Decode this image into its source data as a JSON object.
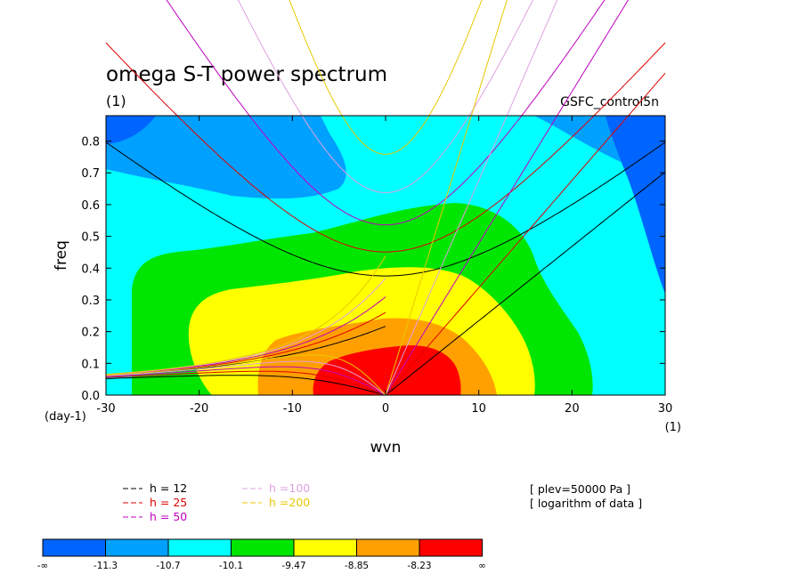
{
  "chart_data": {
    "type": "heatmap",
    "title": "omega S-T power spectrum",
    "subtitle": "(1)",
    "experiment": "GSFC_control5n",
    "xlabel": "wvn",
    "ylabel": "freq",
    "x_unit_label": "(1)",
    "y_unit_label": "(day-1)",
    "xlim": [
      -30,
      30
    ],
    "ylim": [
      0,
      0.88
    ],
    "x_ticks": [
      "-30",
      "-20",
      "-10",
      "0",
      "10",
      "20",
      "30"
    ],
    "y_ticks": [
      "0.0",
      "0.1",
      "0.2",
      "0.3",
      "0.4",
      "0.5",
      "0.6",
      "0.7",
      "0.8"
    ],
    "x_tick_values": [
      -30,
      -20,
      -10,
      0,
      10,
      20,
      30
    ],
    "y_tick_values": [
      0,
      0.1,
      0.2,
      0.3,
      0.4,
      0.5,
      0.6,
      0.7,
      0.8
    ],
    "info_lines": [
      "[ plev=50000 Pa ]",
      "[ logarithm of data ]"
    ],
    "legend": [
      {
        "label": "h = 12",
        "color": "#000000"
      },
      {
        "label": "h = 25",
        "color": "#e00000"
      },
      {
        "label": "h = 50",
        "color": "#c000c0"
      },
      {
        "label": "h =100",
        "color": "#e0a0e0"
      },
      {
        "label": "h =200",
        "color": "#e8c800"
      }
    ],
    "colorbar": {
      "colors": [
        "#0064ff",
        "#00a0ff",
        "#00ffff",
        "#00e600",
        "#ffff00",
        "#ffa000",
        "#ff0000"
      ],
      "labels": [
        "-∞",
        "-11.3",
        "-10.7",
        "-10.1",
        "-9.47",
        "-8.85",
        "-8.23",
        "∞"
      ]
    },
    "dispersion_h": [
      12,
      25,
      50,
      100,
      200
    ]
  }
}
